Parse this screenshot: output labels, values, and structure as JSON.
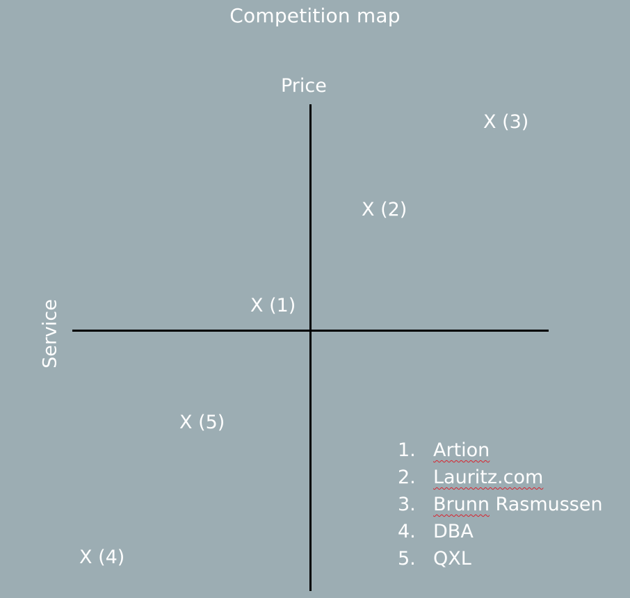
{
  "title": "Competition map",
  "axes": {
    "vertical_label": "Price",
    "horizontal_label": "Service"
  },
  "markers": [
    {
      "label": "X (1)"
    },
    {
      "label": "X (2)"
    },
    {
      "label": "X (3)"
    },
    {
      "label": "X (4)"
    },
    {
      "label": "X (5)"
    }
  ],
  "legend": [
    {
      "number": "1.",
      "name": "Artion"
    },
    {
      "number": "2.",
      "name": "Lauritz.com"
    },
    {
      "number": "3.",
      "first": "Brunn",
      "rest": " Rasmussen"
    },
    {
      "number": "4.",
      "name": "DBA"
    },
    {
      "number": "5.",
      "name": "QXL"
    }
  ],
  "colors": {
    "background": "#9cadb3",
    "text": "#ffffff",
    "axis": "#000000",
    "spellcheck_underline": "#d8212c"
  }
}
